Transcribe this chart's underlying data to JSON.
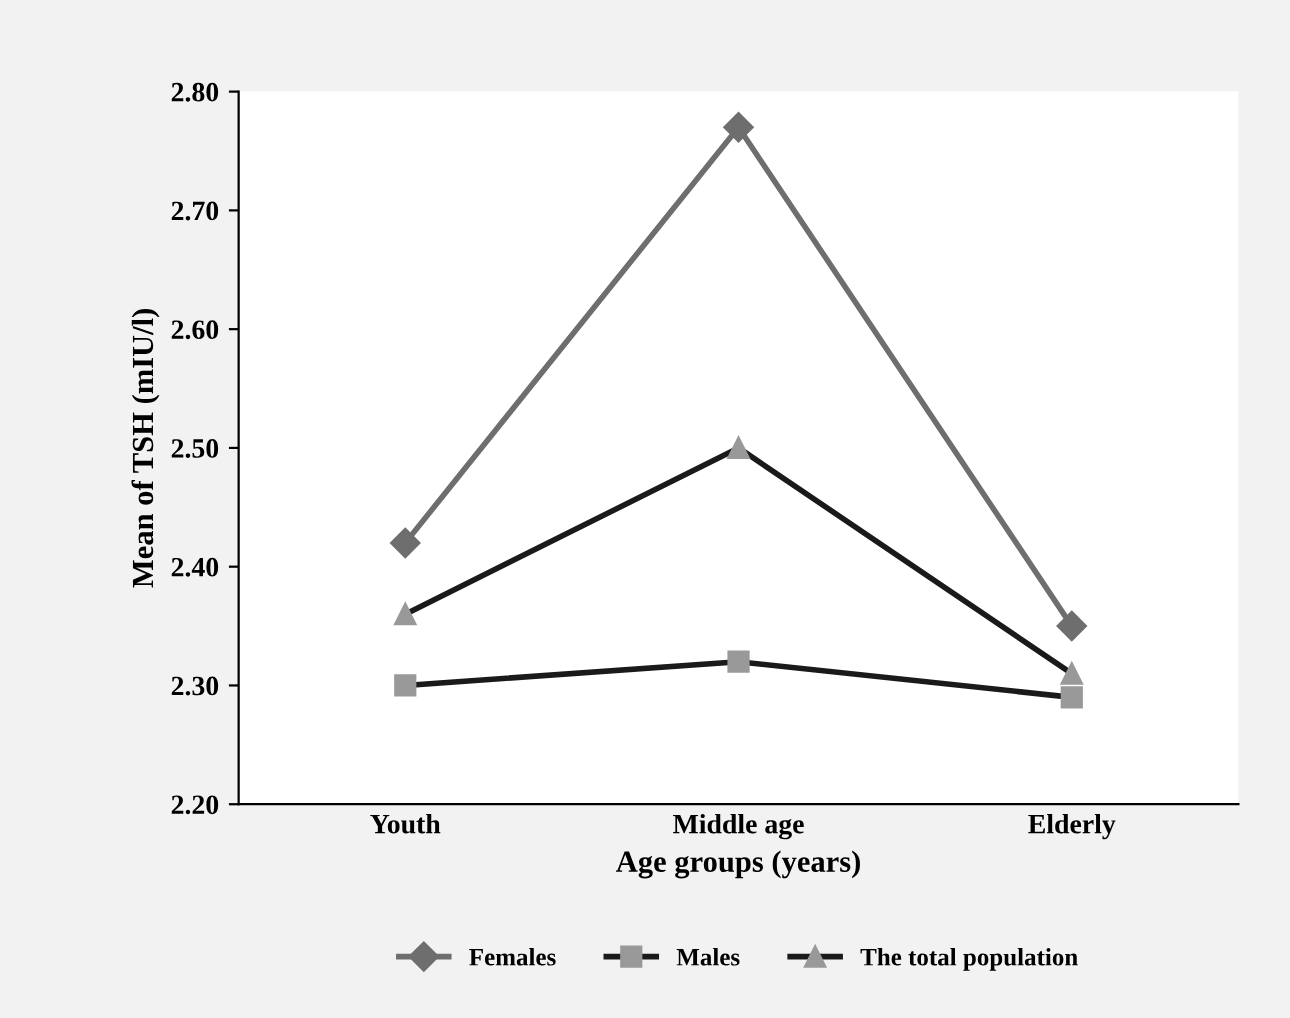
{
  "chart_data": {
    "type": "line",
    "xlabel": "Age groups (years)",
    "ylabel": "Mean of TSH (mIU/l)",
    "categories": [
      "Youth",
      "Middle age",
      "Elderly"
    ],
    "series": [
      {
        "name": "Females",
        "color": "#6e6e6e",
        "marker": "diamond",
        "values": [
          2.42,
          2.77,
          2.35
        ]
      },
      {
        "name": "Males",
        "color": "#1a1a1a",
        "marker": "square",
        "values": [
          2.3,
          2.32,
          2.29
        ]
      },
      {
        "name": "The total population",
        "color": "#1a1a1a",
        "marker": "triangle",
        "values": [
          2.36,
          2.5,
          2.31
        ]
      }
    ],
    "ylim": [
      2.2,
      2.8
    ],
    "yticks": [
      {
        "value": 2.2,
        "label": "2.20"
      },
      {
        "value": 2.3,
        "label": "2.30"
      },
      {
        "value": 2.4,
        "label": "2.40"
      },
      {
        "value": 2.5,
        "label": "2.50"
      },
      {
        "value": 2.6,
        "label": "2.60"
      },
      {
        "value": 2.7,
        "label": "2.70"
      },
      {
        "value": 2.8,
        "label": "2.80"
      }
    ],
    "grid": false,
    "legend": "bottom",
    "line_style": "solid"
  }
}
